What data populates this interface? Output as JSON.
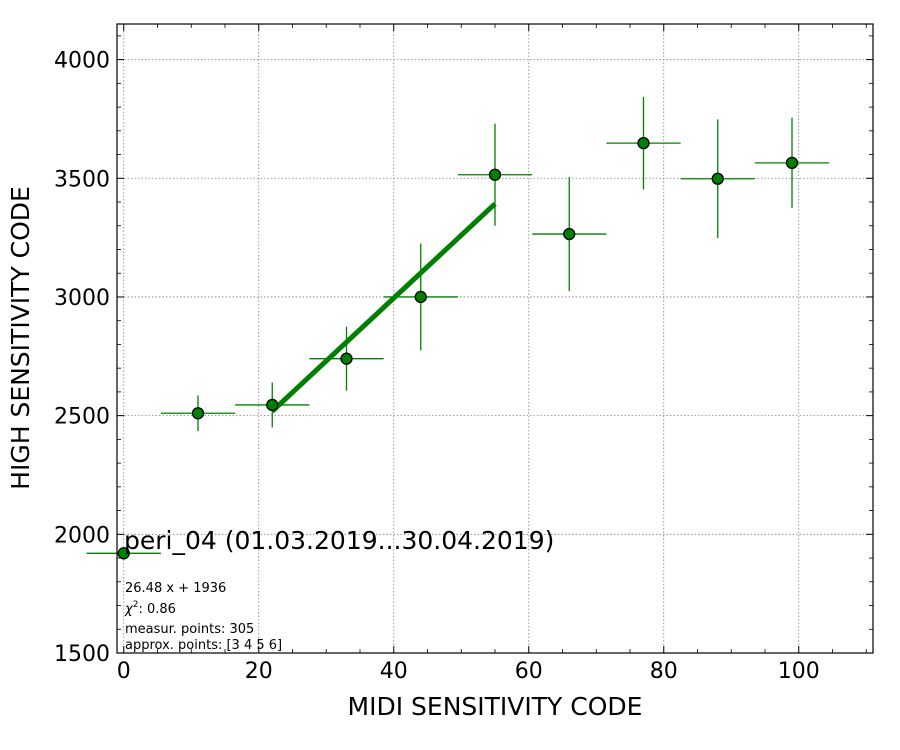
{
  "chart_data": {
    "type": "scatter",
    "xlabel": "MIDI SENSITIVITY CODE",
    "ylabel": "HIGH SENSITIVITY CODE",
    "xlim": [
      -1,
      111
    ],
    "ylim": [
      1500,
      4150
    ],
    "xticks": [
      0,
      20,
      40,
      60,
      80,
      100
    ],
    "yticks": [
      1500,
      2000,
      2500,
      3000,
      3500,
      4000
    ],
    "xtick_labels": [
      "0",
      "20",
      "40",
      "60",
      "80",
      "100"
    ],
    "ytick_labels": [
      "1500",
      "2000",
      "2500",
      "3000",
      "3500",
      "4000"
    ],
    "grid": true,
    "colors": {
      "marker_fill": "#008000",
      "errorbar": "#008000",
      "fit_line": "#008000",
      "grid": "#808080"
    },
    "points": [
      {
        "x": 0,
        "y": 1920,
        "xerr": 5.5,
        "yerr": 0
      },
      {
        "x": 11,
        "y": 2510,
        "xerr": 5.5,
        "yerr": 75
      },
      {
        "x": 22,
        "y": 2545,
        "xerr": 5.5,
        "yerr": 95
      },
      {
        "x": 33,
        "y": 2740,
        "xerr": 5.5,
        "yerr": 135
      },
      {
        "x": 44,
        "y": 3000,
        "xerr": 5.5,
        "yerr": 225
      },
      {
        "x": 55,
        "y": 3515,
        "xerr": 5.5,
        "yerr": 215
      },
      {
        "x": 66,
        "y": 3265,
        "xerr": 5.5,
        "yerr": 240
      },
      {
        "x": 77,
        "y": 3648,
        "xerr": 5.5,
        "yerr": 195
      },
      {
        "x": 88,
        "y": 3498,
        "xerr": 5.5,
        "yerr": 250
      },
      {
        "x": 99,
        "y": 3565,
        "xerr": 5.5,
        "yerr": 190
      }
    ],
    "fit": {
      "slope": 26.48,
      "intercept": 1936,
      "x_start": 22,
      "x_end": 55
    },
    "annotations": {
      "title": "peri_04 (01.03.2019...30.04.2019)",
      "formula": "26.48 x + 1936",
      "chi2_label": "χ",
      "chi2_sup": "2",
      "chi2_value": ": 0.86",
      "measured": "measur. points: 305",
      "approx": "approx. points: [3 4 5 6]"
    }
  }
}
